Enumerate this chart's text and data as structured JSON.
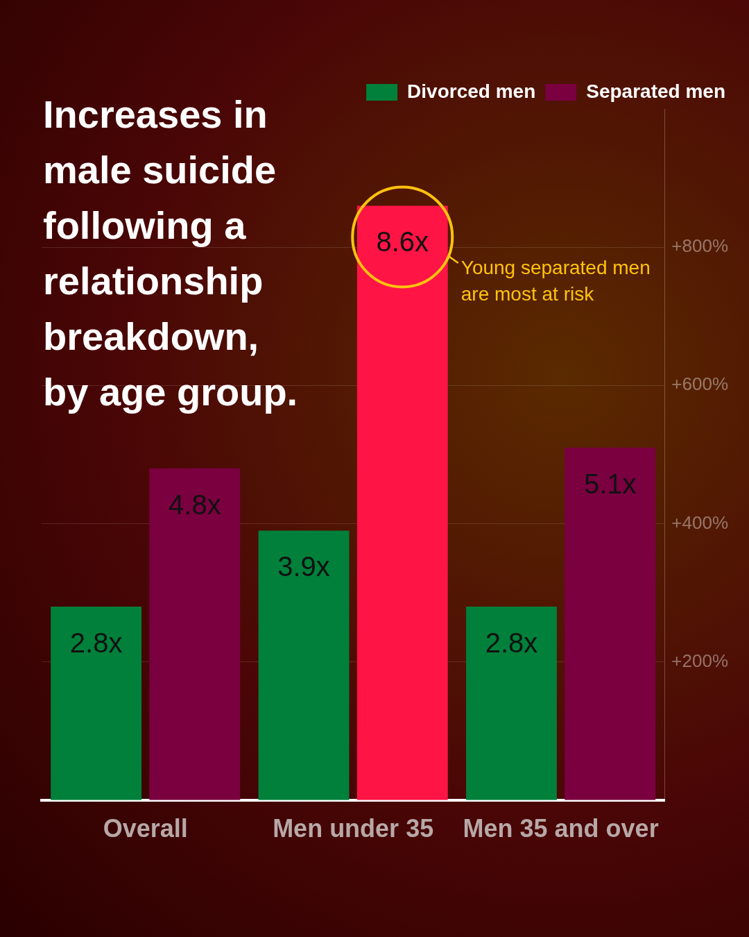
{
  "chart_data": {
    "type": "bar",
    "title": "Increases in male suicide following a relationship breakdown, by age group.",
    "categories": [
      "Overall",
      "Men under 35",
      "Men 35 and over"
    ],
    "series": [
      {
        "name": "Divorced men",
        "color": "#00803a",
        "values": [
          2.8,
          3.9,
          2.8
        ],
        "value_labels": [
          "2.8x",
          "3.9x",
          "2.8x"
        ]
      },
      {
        "name": "Separated men",
        "color": "#7a0040",
        "colors": [
          "#7a0040",
          "#ff1446",
          "#7a0040"
        ],
        "values": [
          4.8,
          8.6,
          5.1
        ],
        "value_labels": [
          "4.8x",
          "8.6x",
          "5.1x"
        ]
      }
    ],
    "ylim": [
      0,
      10
    ],
    "yticks": [
      {
        "value": 2,
        "label": "+200%"
      },
      {
        "value": 4,
        "label": "+400%"
      },
      {
        "value": 6,
        "label": "+600%"
      },
      {
        "value": 8,
        "label": "+800%"
      }
    ],
    "grid": "y",
    "legend": "top right",
    "annotations": [
      "Young separated men are most at risk"
    ]
  }
}
